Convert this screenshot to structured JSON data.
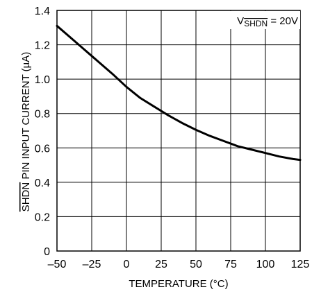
{
  "chart_data": {
    "type": "line",
    "xlabel": "TEMPERATURE (°C)",
    "ylabel_overlined": "SHDN",
    "ylabel_rest": " PIN INPUT CURRENT (µA)",
    "xlim": [
      -50,
      125
    ],
    "ylim": [
      0,
      1.4
    ],
    "xticks": [
      -50,
      -25,
      0,
      25,
      50,
      75,
      100,
      125
    ],
    "xtick_labels": [
      "–50",
      "–25",
      "0",
      "25",
      "50",
      "75",
      "100",
      "125"
    ],
    "yticks": [
      0,
      0.2,
      0.4,
      0.6,
      0.8,
      1.0,
      1.2,
      1.4
    ],
    "ytick_labels": [
      "0",
      "0.2",
      "0.4",
      "0.6",
      "0.8",
      "1.0",
      "1.2",
      "1.4"
    ],
    "grid": true,
    "annotation": {
      "prefix": "V",
      "subscript_overlined": "SHDN",
      "suffix": " = 20V",
      "placement": "top-right"
    },
    "series": [
      {
        "x": [
          -50,
          -40,
          -30,
          -25,
          -20,
          -10,
          0,
          10,
          20,
          25,
          30,
          40,
          50,
          60,
          70,
          75,
          80,
          90,
          100,
          110,
          120,
          125
        ],
        "y": [
          1.31,
          1.24,
          1.17,
          1.135,
          1.1,
          1.03,
          0.955,
          0.89,
          0.84,
          0.815,
          0.79,
          0.745,
          0.705,
          0.67,
          0.64,
          0.625,
          0.61,
          0.59,
          0.57,
          0.55,
          0.535,
          0.53
        ]
      }
    ]
  }
}
